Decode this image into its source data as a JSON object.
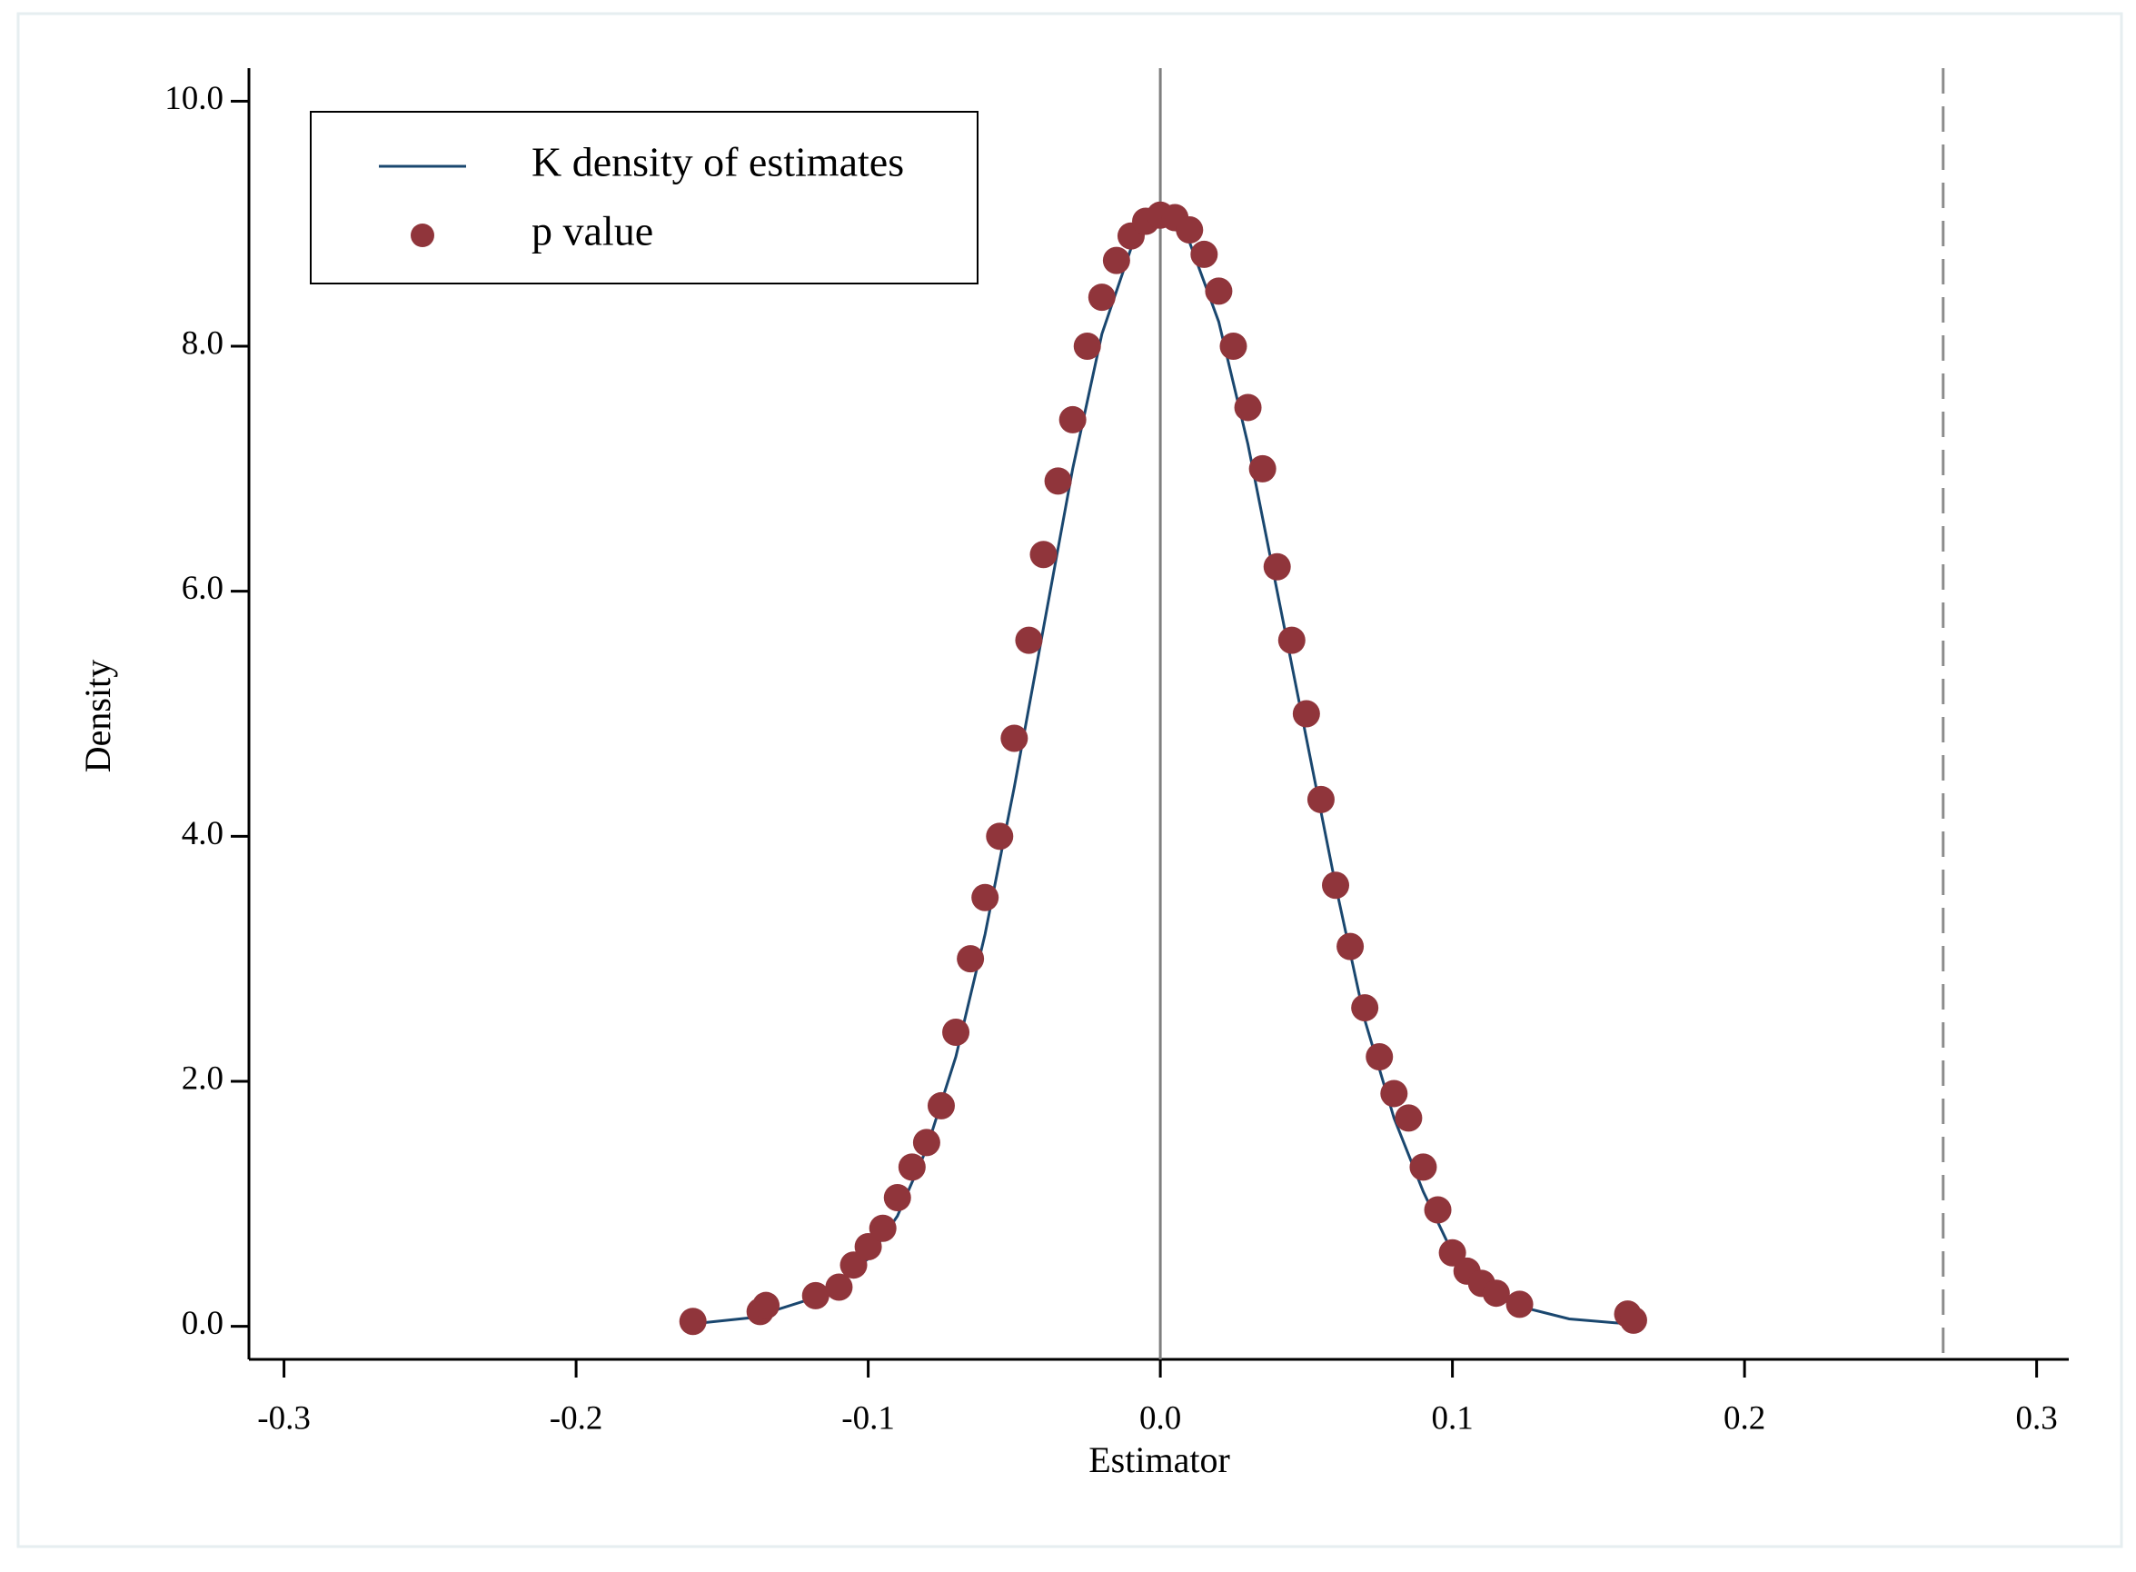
{
  "chart_data": {
    "type": "line",
    "xlabel": "Estimator",
    "ylabel": "Density",
    "xlim": [
      -0.312,
      0.311
    ],
    "ylim": [
      -0.27,
      10.27
    ],
    "xticks": [
      -0.3,
      -0.2,
      -0.1,
      {
        "value": 0,
        "label": "0.0"
      },
      0.1,
      0.2,
      0.3
    ],
    "yticks": [
      {
        "value": 0,
        "label": "0.0"
      },
      {
        "value": 2,
        "label": "2.0"
      },
      {
        "value": 4,
        "label": "4.0"
      },
      {
        "value": 6,
        "label": "6.0"
      },
      {
        "value": 8,
        "label": "8.0"
      },
      {
        "value": 10,
        "label": "10.0"
      }
    ],
    "vlines": [
      {
        "value": 0,
        "style": "solid",
        "color": "#7f7f7f"
      },
      {
        "value": 0.268,
        "style": "dashed",
        "color": "#8c8c8c"
      }
    ],
    "legend": "top-left",
    "series": [
      {
        "name": "K density of estimates",
        "type": "line",
        "color": "#1a476f",
        "x": [
          -0.16,
          -0.14,
          -0.12,
          -0.1,
          -0.09,
          -0.08,
          -0.07,
          -0.06,
          -0.05,
          -0.04,
          -0.03,
          -0.02,
          -0.01,
          0,
          0.01,
          0.02,
          0.03,
          0.04,
          0.05,
          0.06,
          0.07,
          0.08,
          0.09,
          0.1,
          0.11,
          0.12,
          0.14,
          0.16
        ],
        "values": [
          0.02,
          0.07,
          0.22,
          0.55,
          0.9,
          1.45,
          2.2,
          3.2,
          4.4,
          5.7,
          7.0,
          8.1,
          8.8,
          9.07,
          8.85,
          8.2,
          7.2,
          6.0,
          4.8,
          3.6,
          2.5,
          1.7,
          1.1,
          0.6,
          0.35,
          0.18,
          0.06,
          0.02
        ]
      },
      {
        "name": "p value",
        "type": "scatter",
        "color": "#90353b",
        "x": [
          -0.16,
          -0.137,
          -0.135,
          -0.118,
          -0.11,
          -0.105,
          -0.1,
          -0.095,
          -0.09,
          -0.085,
          -0.08,
          -0.075,
          -0.07,
          -0.065,
          -0.06,
          -0.055,
          -0.05,
          -0.045,
          -0.04,
          -0.035,
          -0.03,
          -0.025,
          -0.02,
          -0.015,
          -0.01,
          -0.005,
          0,
          0.005,
          0.01,
          0.015,
          0.02,
          0.025,
          0.03,
          0.035,
          0.04,
          0.045,
          0.05,
          0.055,
          0.06,
          0.065,
          0.07,
          0.075,
          0.08,
          0.085,
          0.09,
          0.095,
          0.1,
          0.105,
          0.11,
          0.115,
          0.123,
          0.16,
          0.162
        ],
        "values": [
          0.04,
          0.12,
          0.17,
          0.25,
          0.32,
          0.5,
          0.65,
          0.8,
          1.05,
          1.3,
          1.5,
          1.8,
          2.4,
          3.0,
          3.5,
          4.0,
          4.8,
          5.6,
          6.3,
          6.9,
          7.4,
          8.0,
          8.4,
          8.7,
          8.9,
          9.02,
          9.07,
          9.05,
          8.95,
          8.75,
          8.45,
          8.0,
          7.5,
          7.0,
          6.2,
          5.6,
          5.0,
          4.3,
          3.6,
          3.1,
          2.6,
          2.2,
          1.9,
          1.7,
          1.3,
          0.95,
          0.6,
          0.45,
          0.35,
          0.27,
          0.18,
          0.1,
          0.05
        ]
      }
    ]
  }
}
